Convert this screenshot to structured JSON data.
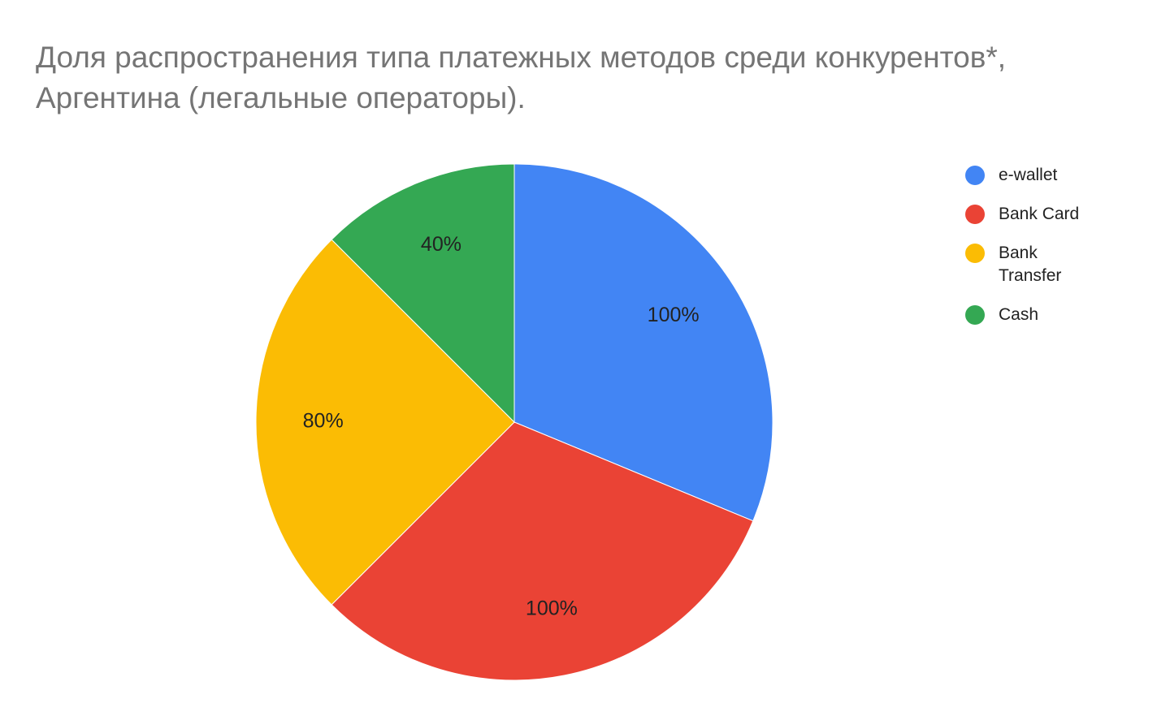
{
  "chart_data": {
    "type": "pie",
    "title": "Доля распространения типа платежных методов среди конкурентов*, Аргентина (легальные операторы).",
    "categories": [
      "e-wallet",
      "Bank Card",
      "Bank Transfer",
      "Cash"
    ],
    "values": [
      100,
      100,
      80,
      40
    ],
    "value_labels": [
      "100%",
      "100%",
      "80%",
      "40%"
    ],
    "colors": [
      "#4285f4",
      "#ea4335",
      "#fbbc04",
      "#34a853"
    ],
    "legend": "right"
  }
}
